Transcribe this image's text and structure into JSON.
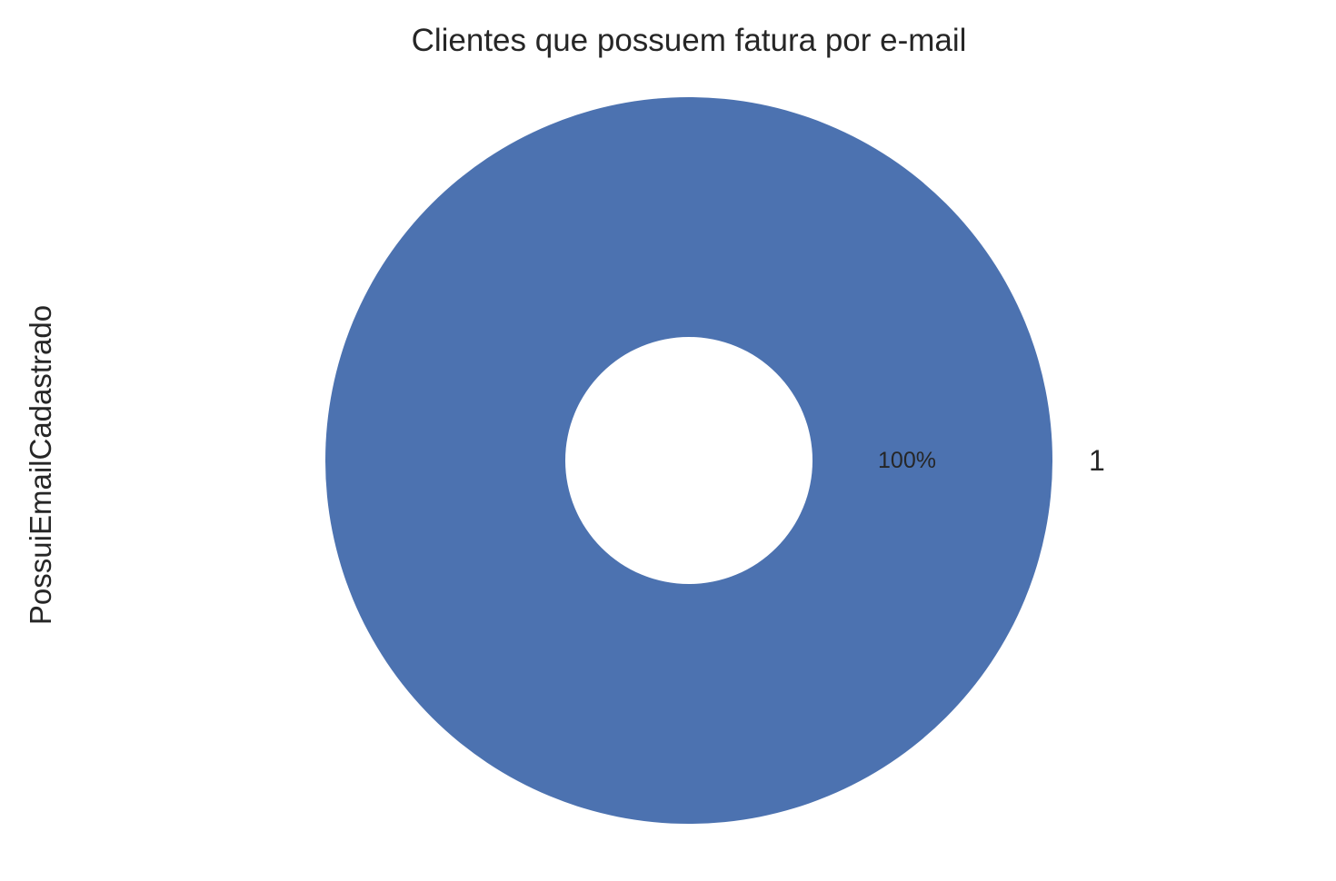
{
  "chart_data": {
    "type": "pie",
    "title": "Clientes que possuem fatura por e-mail",
    "ylabel": "PossuiEmailCadastrado",
    "categories": [
      "1"
    ],
    "values": [
      100
    ],
    "pct_labels": [
      "100%"
    ],
    "donut": true,
    "colors": [
      "#4c72b0"
    ]
  }
}
